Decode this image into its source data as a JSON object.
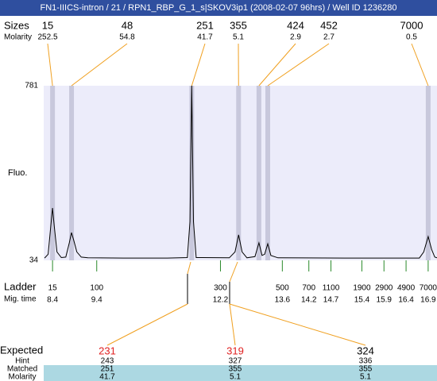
{
  "chart_data": {
    "type": "electropherogram",
    "title": "FN1-IIICS-intron / 21 / RPN1_RBP_G_1_s|SKOV3ip1 (2008-02-07 96hrs) / Well ID 1236280",
    "ylabel": "Fluo.",
    "ylim": [
      34,
      781
    ],
    "yticks": [
      34,
      781
    ],
    "xlim": [
      8.2,
      17.1
    ],
    "color": "#000000",
    "x": [
      8.22,
      8.3,
      8.36,
      8.4,
      8.44,
      8.5,
      8.6,
      8.7,
      8.78,
      8.83,
      8.88,
      8.95,
      9.05,
      9.2,
      10.0,
      11.0,
      11.45,
      11.51,
      11.55,
      11.59,
      11.65,
      12.4,
      12.53,
      12.61,
      12.69,
      12.8,
      12.98,
      13.07,
      13.14,
      13.2,
      13.27,
      13.34,
      13.5,
      15.0,
      16.7,
      16.8,
      16.9,
      16.98,
      17.05,
      17.1
    ],
    "values": [
      44,
      60,
      180,
      258,
      180,
      70,
      46,
      48,
      110,
      153,
      120,
      70,
      48,
      45,
      44,
      44,
      46,
      200,
      781,
      200,
      46,
      45,
      70,
      143,
      70,
      45,
      50,
      109,
      55,
      60,
      105,
      55,
      45,
      44,
      44,
      70,
      136,
      80,
      48,
      45
    ],
    "peaks": {
      "size_label": "Sizes",
      "molarity_label": "Molarity",
      "sizes": [
        15,
        48,
        251,
        355,
        424,
        452,
        7000
      ],
      "molarity": [
        252.5,
        54.8,
        41.7,
        5.1,
        2.9,
        2.7,
        0.5
      ],
      "times": [
        8.4,
        8.83,
        11.55,
        12.61,
        13.07,
        13.27,
        16.9
      ]
    },
    "ladder": {
      "label": "Ladder",
      "time_label": "Mig. time",
      "sizes": [
        15,
        100,
        300,
        500,
        700,
        1100,
        1900,
        2900,
        4900,
        7000
      ],
      "times": [
        8.4,
        9.4,
        12.2,
        13.6,
        14.2,
        14.7,
        15.4,
        15.9,
        16.4,
        16.9
      ]
    },
    "expected": {
      "label": "Expected",
      "values": [
        231,
        319,
        324
      ],
      "colors": [
        "#e02020",
        "#e02020",
        "#000000"
      ],
      "hint_label": "Hint",
      "hint": [
        243,
        327,
        336
      ],
      "matched_label": "Matched",
      "matched": [
        251,
        355,
        355
      ],
      "molarity_label": "Molarity",
      "molarity": [
        41.7,
        5.1,
        5.1
      ]
    }
  }
}
